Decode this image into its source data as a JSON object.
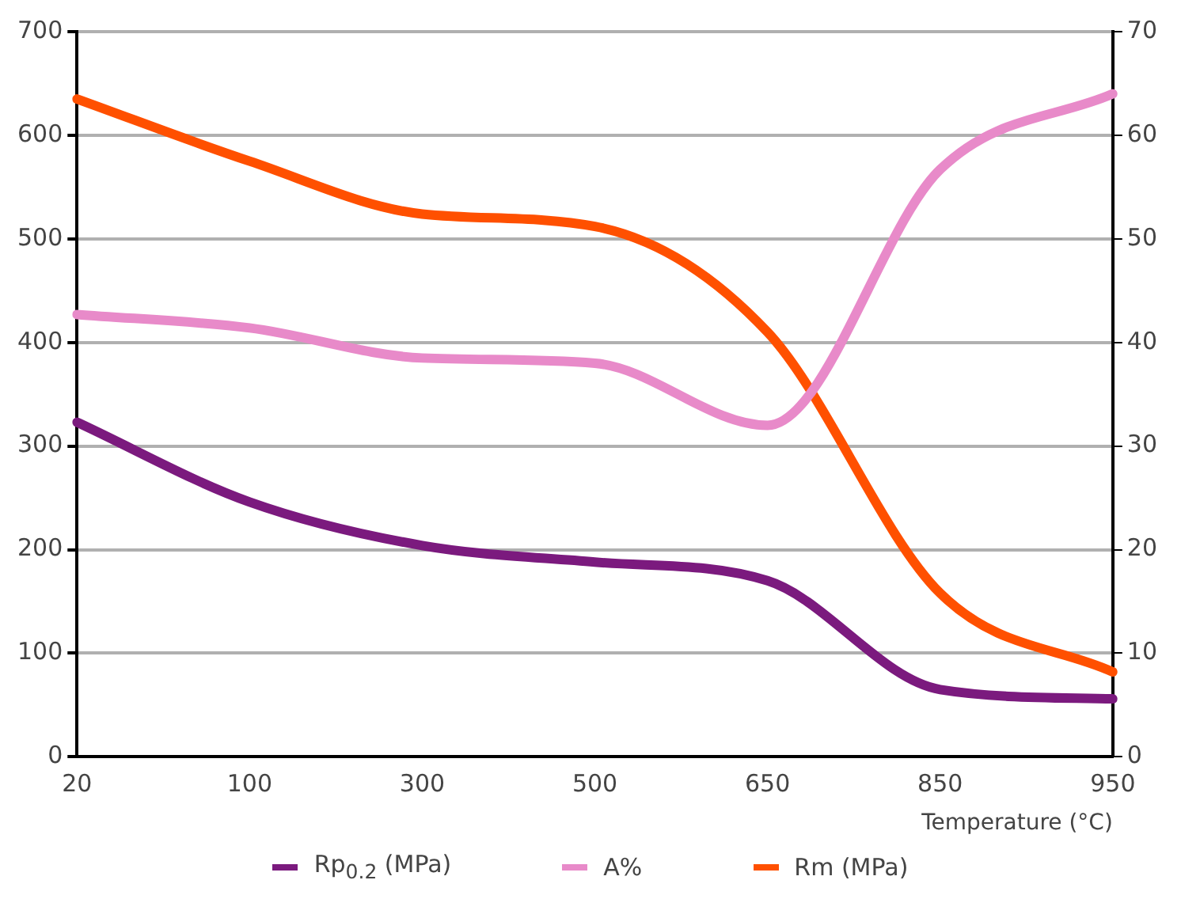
{
  "chart_data": {
    "type": "line",
    "xlabel": "Temperature (°C)",
    "categories": [
      "20",
      "100",
      "300",
      "500",
      "650",
      "850",
      "950"
    ],
    "series": [
      {
        "name": "Rp$_{0.2}$ (MPa)",
        "color": "#7b1a7e",
        "values": [
          323,
          246,
          204,
          188,
          170,
          65,
          56
        ]
      },
      {
        "name": "A%",
        "color": "#e88ac9",
        "axis": "y2",
        "values": [
          42.7,
          41.4,
          38.5,
          38,
          32,
          56.7,
          64
        ]
      },
      {
        "name": "Rm (MPa)",
        "color": "#ff5000",
        "values": [
          635,
          575,
          524,
          512,
          410,
          158,
          82
        ]
      }
    ],
    "ylim": [
      0,
      700
    ],
    "yticks": [
      0,
      100,
      200,
      300,
      400,
      500,
      600,
      700
    ],
    "y2lim": [
      0,
      70
    ],
    "y2ticks": [
      0,
      10,
      20,
      30,
      40,
      50,
      60,
      70
    ],
    "grid": "y",
    "legend": "bottom",
    "marker": "none",
    "line_style": "solid"
  }
}
